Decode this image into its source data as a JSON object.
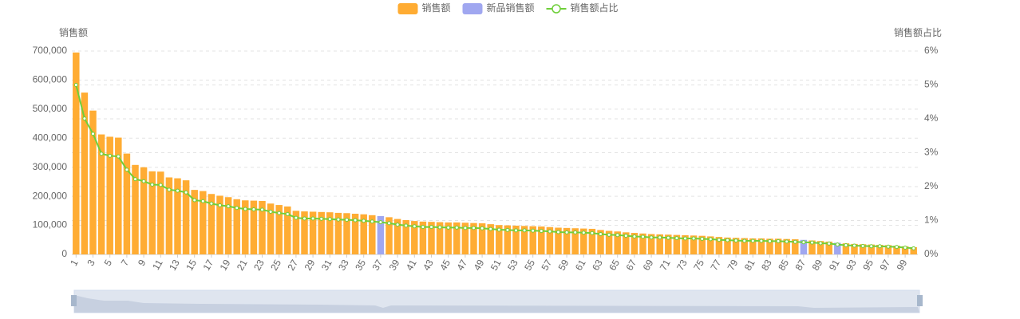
{
  "chart_data": {
    "type": "bar-line",
    "y_label": "销售额",
    "y2_label": "销售额占比",
    "categories": [
      "1",
      null,
      "3",
      null,
      "5",
      null,
      "7",
      null,
      "9",
      null,
      "11",
      null,
      "13",
      null,
      "15",
      null,
      "17",
      null,
      "19",
      null,
      "21",
      null,
      "23",
      null,
      "25",
      null,
      "27",
      null,
      "29",
      null,
      "31",
      null,
      "33",
      null,
      "35",
      null,
      "37",
      null,
      "39",
      null,
      "41",
      null,
      "43",
      null,
      "45",
      null,
      "47",
      null,
      "49",
      null,
      "51",
      null,
      "53",
      null,
      "55",
      null,
      "57",
      null,
      "59",
      null,
      "61",
      null,
      "63",
      null,
      "65",
      null,
      "67",
      null,
      "69",
      null,
      "71",
      null,
      "73",
      null,
      "75",
      null,
      "77",
      null,
      "79",
      null,
      "81",
      null,
      "83",
      null,
      "85",
      null,
      "87",
      null,
      "89",
      null,
      "91",
      null,
      "93",
      null,
      "95",
      null,
      "97",
      null,
      "99",
      null
    ],
    "series": [
      {
        "name": "销售额",
        "type": "bar",
        "color": "#ffac33",
        "values": [
          695000,
          557000,
          495000,
          413000,
          405000,
          402000,
          347000,
          308000,
          300000,
          286000,
          285000,
          265000,
          262000,
          255000,
          222000,
          218000,
          208000,
          202000,
          197000,
          190000,
          186000,
          185000,
          184000,
          175000,
          170000,
          165000,
          150000,
          148000,
          147000,
          146000,
          145000,
          143000,
          142000,
          140000,
          138000,
          135000,
          null,
          128000,
          122000,
          118000,
          115000,
          113000,
          112000,
          111000,
          110000,
          110000,
          109000,
          108000,
          107000,
          104000,
          101000,
          100000,
          99000,
          98000,
          97000,
          96000,
          94000,
          92000,
          91000,
          90000,
          89000,
          88000,
          84000,
          81000,
          79000,
          76000,
          74000,
          72000,
          70000,
          69000,
          68000,
          67000,
          66000,
          65000,
          64000,
          62000,
          60000,
          58000,
          57000,
          56000,
          55000,
          55000,
          54000,
          54000,
          53000,
          52000,
          null,
          48000,
          46000,
          44000,
          null,
          38000,
          36000,
          35000,
          34000,
          33000,
          32000,
          30000,
          28000,
          25000
        ]
      },
      {
        "name": "新品销售额",
        "type": "bar",
        "color": "#a0a7f0",
        "values": [
          null,
          null,
          null,
          null,
          null,
          null,
          null,
          null,
          null,
          null,
          null,
          null,
          null,
          null,
          null,
          null,
          null,
          null,
          null,
          null,
          null,
          null,
          null,
          null,
          null,
          null,
          null,
          null,
          null,
          null,
          null,
          null,
          null,
          null,
          null,
          null,
          132000,
          null,
          null,
          null,
          null,
          null,
          null,
          null,
          null,
          null,
          null,
          null,
          null,
          null,
          null,
          null,
          null,
          null,
          null,
          null,
          null,
          null,
          null,
          null,
          null,
          null,
          null,
          null,
          null,
          null,
          null,
          null,
          null,
          null,
          null,
          null,
          null,
          null,
          null,
          null,
          null,
          null,
          null,
          null,
          null,
          null,
          null,
          null,
          null,
          null,
          50000,
          null,
          null,
          null,
          40000,
          null,
          null,
          null,
          null,
          null,
          null,
          null,
          null,
          null
        ]
      },
      {
        "name": "销售额占比",
        "type": "line",
        "axis": "y2",
        "color": "#6fcf3a",
        "values": [
          5.0,
          4.01,
          3.56,
          2.97,
          2.91,
          2.89,
          2.5,
          2.22,
          2.16,
          2.06,
          2.05,
          1.91,
          1.88,
          1.83,
          1.6,
          1.57,
          1.5,
          1.45,
          1.42,
          1.37,
          1.34,
          1.33,
          1.32,
          1.26,
          1.22,
          1.19,
          1.08,
          1.06,
          1.06,
          1.05,
          1.04,
          1.03,
          1.02,
          1.01,
          0.99,
          0.97,
          0.95,
          0.92,
          0.88,
          0.85,
          0.83,
          0.81,
          0.81,
          0.8,
          0.79,
          0.79,
          0.78,
          0.78,
          0.77,
          0.75,
          0.73,
          0.72,
          0.71,
          0.71,
          0.7,
          0.69,
          0.68,
          0.66,
          0.65,
          0.65,
          0.64,
          0.63,
          0.6,
          0.58,
          0.57,
          0.55,
          0.53,
          0.52,
          0.5,
          0.5,
          0.49,
          0.48,
          0.47,
          0.47,
          0.46,
          0.45,
          0.43,
          0.42,
          0.41,
          0.4,
          0.4,
          0.4,
          0.39,
          0.39,
          0.38,
          0.37,
          0.36,
          0.35,
          0.33,
          0.32,
          0.29,
          0.27,
          0.26,
          0.25,
          0.24,
          0.24,
          0.23,
          0.22,
          0.2,
          0.18
        ]
      }
    ],
    "ylim": [
      0,
      700000
    ],
    "yticks": [
      0,
      {
        "value": 100000,
        "label": "100,000"
      },
      {
        "value": 200000,
        "label": "200,000"
      },
      {
        "value": 300000,
        "label": "300,000"
      },
      {
        "value": 400000,
        "label": "400,000"
      },
      {
        "value": 500000,
        "label": "500,000"
      },
      {
        "value": 600000,
        "label": "600,000"
      },
      {
        "value": 700000,
        "label": "700,000"
      }
    ],
    "y2lim": [
      0,
      6
    ],
    "y2ticks": [
      {
        "value": 0,
        "label": "0%"
      },
      {
        "value": 1,
        "label": "1%"
      },
      {
        "value": 2,
        "label": "2%"
      },
      {
        "value": 3,
        "label": "3%"
      },
      {
        "value": 4,
        "label": "4%"
      },
      {
        "value": 5,
        "label": "5%"
      },
      {
        "value": 6,
        "label": "6%"
      }
    ],
    "grid": true,
    "legend": "top"
  }
}
